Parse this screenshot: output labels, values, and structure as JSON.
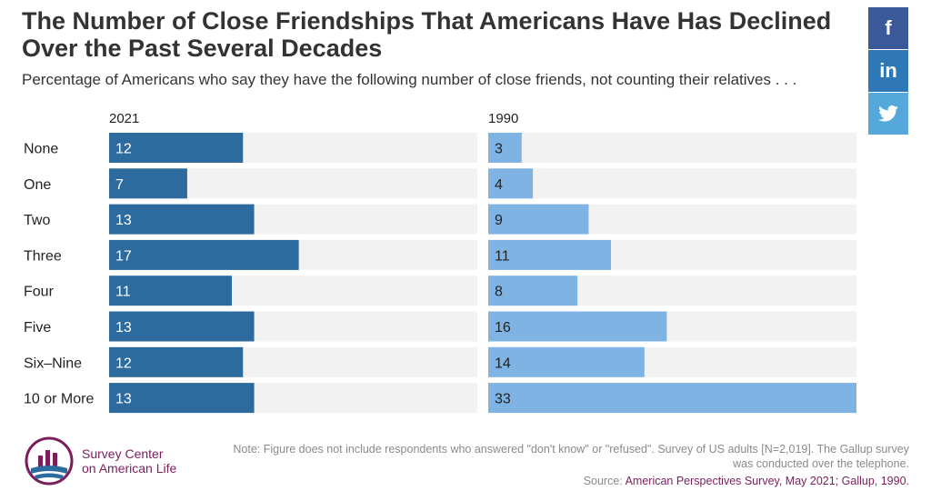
{
  "title": "The Number of Close Friendships That Americans Have Has Declined Over the Past Several Decades",
  "subtitle": "Percentage of Americans who say they have the following number of close friends, not counting their relatives . . .",
  "social": {
    "facebook": "f",
    "linkedin": "in",
    "twitter": "🐦"
  },
  "chart_data": {
    "type": "bar",
    "orientation": "horizontal",
    "categories": [
      "None",
      "One",
      "Two",
      "Three",
      "Four",
      "Five",
      "Six–Nine",
      "10 or More"
    ],
    "series": [
      {
        "name": "2021",
        "values": [
          12,
          7,
          13,
          17,
          11,
          13,
          12,
          13
        ],
        "color": "#2d6a9e",
        "label_color": "#ffffff"
      },
      {
        "name": "1990",
        "values": [
          3,
          4,
          9,
          11,
          8,
          16,
          14,
          33
        ],
        "color": "#7fb3e3",
        "label_color": "#222222"
      }
    ],
    "xlim": [
      0,
      33
    ],
    "background_track_color": "#f2f2f2"
  },
  "logo": {
    "line1": "Survey Center",
    "line2": "on American Life"
  },
  "note": "Note: Figure does not include respondents who answered \"don't know\" or \"refused\". Survey of US adults [N=2,019]. The Gallup survey was conducted over the telephone.",
  "source": {
    "label": "Source:",
    "text": "American Perspectives Survey, May 2021; Gallup, 1990."
  }
}
